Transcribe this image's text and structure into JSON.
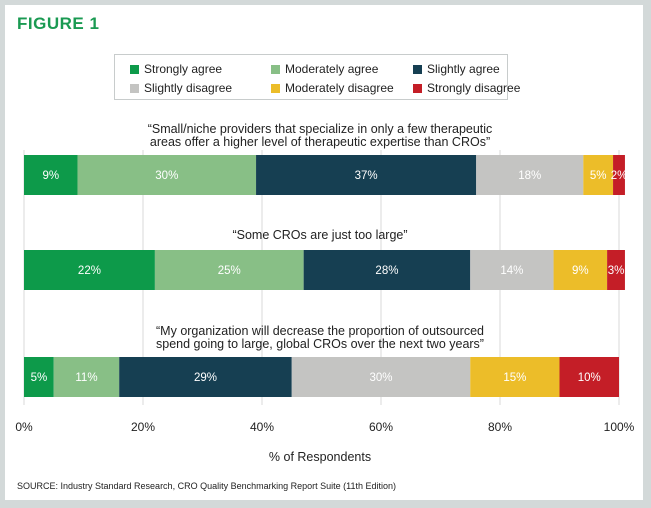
{
  "figure_title": "FIGURE 1",
  "source": "SOURCE: Industry Standard Research, CRO Quality Benchmarking Report Suite (11th Edition)",
  "colors": {
    "strongly_agree": "#0d9a4a",
    "moderately_agree": "#88bf86",
    "slightly_agree": "#163f52",
    "slightly_disagree": "#c4c4c2",
    "moderately_disagree": "#ecbd29",
    "strongly_disagree": "#c41e27",
    "title": "#1a9a52",
    "frame": "#d3d9d9",
    "gridline": "#d9d9d9"
  },
  "chart_data": {
    "type": "bar",
    "orientation": "horizontal",
    "stacked": true,
    "xlabel": "% of Respondents",
    "ylabel": "",
    "xlim": [
      0,
      100
    ],
    "x_ticks": [
      "0%",
      "20%",
      "40%",
      "60%",
      "80%",
      "100%"
    ],
    "x_tick_values": [
      0,
      20,
      40,
      60,
      80,
      100
    ],
    "grid": true,
    "legend": {
      "placement": "top-center",
      "entries": [
        {
          "label": "Strongly agree",
          "color_key": "strongly_agree"
        },
        {
          "label": "Moderately agree",
          "color_key": "moderately_agree"
        },
        {
          "label": "Slightly agree",
          "color_key": "slightly_agree"
        },
        {
          "label": "Slightly disagree",
          "color_key": "slightly_disagree"
        },
        {
          "label": "Moderately disagree",
          "color_key": "moderately_disagree"
        },
        {
          "label": "Strongly disagree",
          "color_key": "strongly_disagree"
        }
      ]
    },
    "categories": [
      "“Small/niche providers that specialize in only a few therapeutic areas offer a higher level of therapeutic expertise than CROs”",
      "“Some CROs are just too large”",
      "“My organization will decrease the proportion of outsourced spend going to large, global CROs over the next two years”"
    ],
    "category_lines": [
      [
        "“Small/niche providers that specialize in only a few therapeutic",
        "areas offer a higher level of therapeutic expertise than CROs”"
      ],
      [
        "“Some CROs are just too large”"
      ],
      [
        "“My organization will decrease the proportion of outsourced",
        "spend going to large, global CROs over the next two years”"
      ]
    ],
    "series": [
      {
        "name": "Strongly agree",
        "values": [
          9,
          22,
          5
        ],
        "labels": [
          "9%",
          "22%",
          "5%"
        ]
      },
      {
        "name": "Moderately agree",
        "values": [
          30,
          25,
          11
        ],
        "labels": [
          "30%",
          "25%",
          "11%"
        ]
      },
      {
        "name": "Slightly agree",
        "values": [
          37,
          28,
          29
        ],
        "labels": [
          "37%",
          "28%",
          "29%"
        ]
      },
      {
        "name": "Slightly disagree",
        "values": [
          18,
          14,
          30
        ],
        "labels": [
          "18%",
          "14%",
          "30%"
        ]
      },
      {
        "name": "Moderately disagree",
        "values": [
          5,
          9,
          15
        ],
        "labels": [
          "5%",
          "9%",
          "15%"
        ]
      },
      {
        "name": "Strongly disagree",
        "values": [
          2,
          3,
          10
        ],
        "labels": [
          "2%",
          "3%",
          "10%"
        ]
      }
    ]
  }
}
